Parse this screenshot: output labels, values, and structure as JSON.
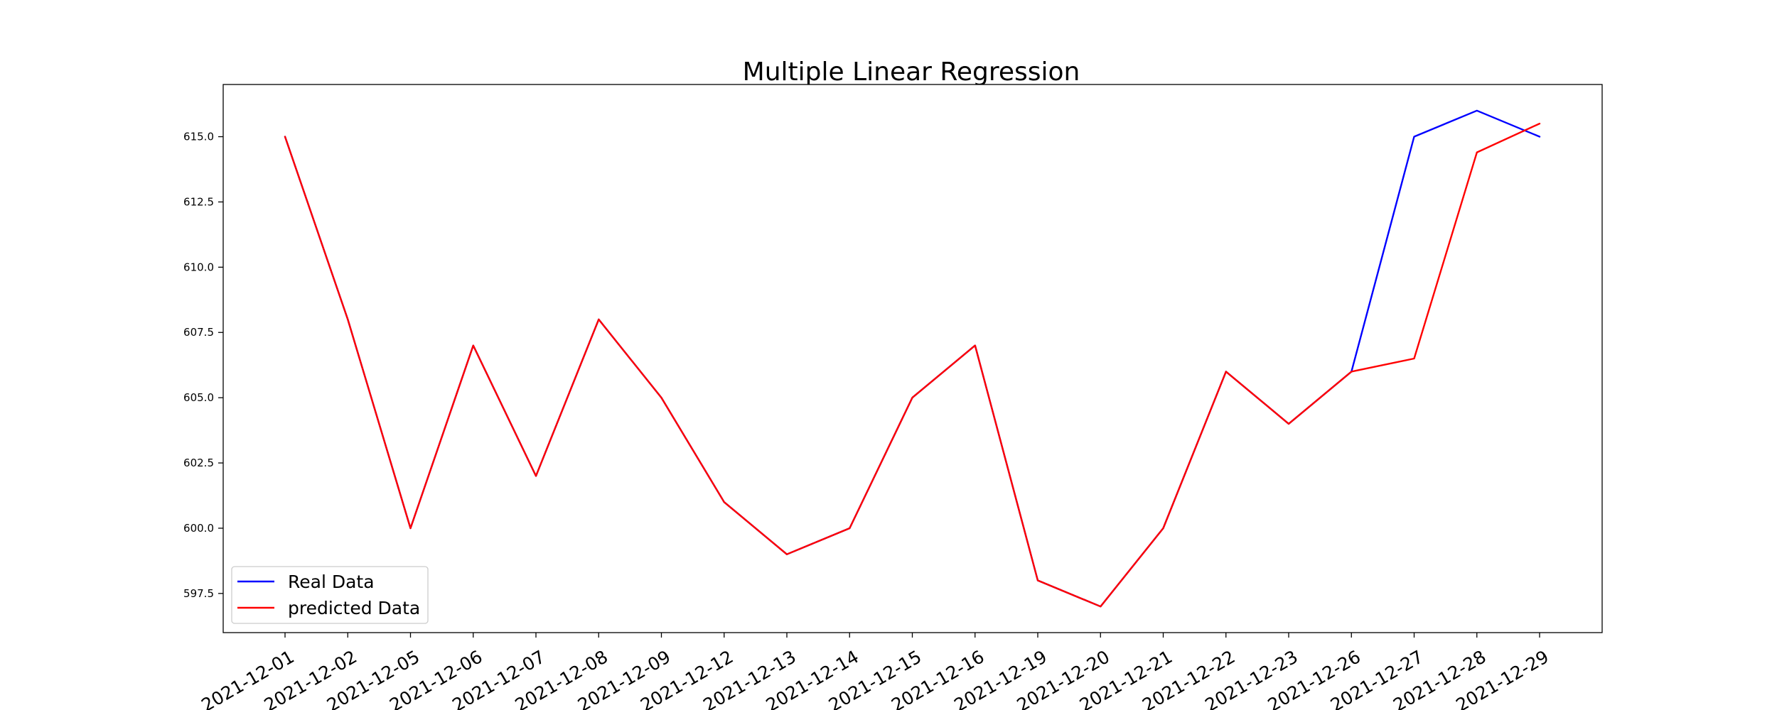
{
  "chart_data": {
    "type": "line",
    "title": "Multiple Linear Regression",
    "xlabel": "",
    "ylabel": "",
    "categories": [
      "2021-12-01",
      "2021-12-02",
      "2021-12-05",
      "2021-12-06",
      "2021-12-07",
      "2021-12-08",
      "2021-12-09",
      "2021-12-12",
      "2021-12-13",
      "2021-12-14",
      "2021-12-15",
      "2021-12-16",
      "2021-12-19",
      "2021-12-20",
      "2021-12-21",
      "2021-12-22",
      "2021-12-23",
      "2021-12-26",
      "2021-12-27",
      "2021-12-28",
      "2021-12-29"
    ],
    "series": [
      {
        "name": "Real Data",
        "color": "#0000ff",
        "values": [
          615,
          608,
          600,
          607,
          602,
          608,
          605,
          601,
          599,
          600,
          605,
          607,
          598,
          597,
          600,
          606,
          604,
          606,
          615,
          616,
          615
        ]
      },
      {
        "name": "predicted Data",
        "color": "#ff0000",
        "values": [
          615,
          608,
          600,
          607,
          602,
          608,
          605,
          601,
          599,
          600,
          605,
          607,
          598,
          597,
          600,
          606,
          604,
          606,
          606.5,
          614.4,
          615.5
        ]
      }
    ],
    "yticks": [
      "597.5",
      "600.0",
      "602.5",
      "605.0",
      "607.5",
      "610.0",
      "612.5",
      "615.0"
    ],
    "ylim": [
      596.0,
      617.0
    ],
    "grid": true,
    "legend": "lower-left"
  }
}
